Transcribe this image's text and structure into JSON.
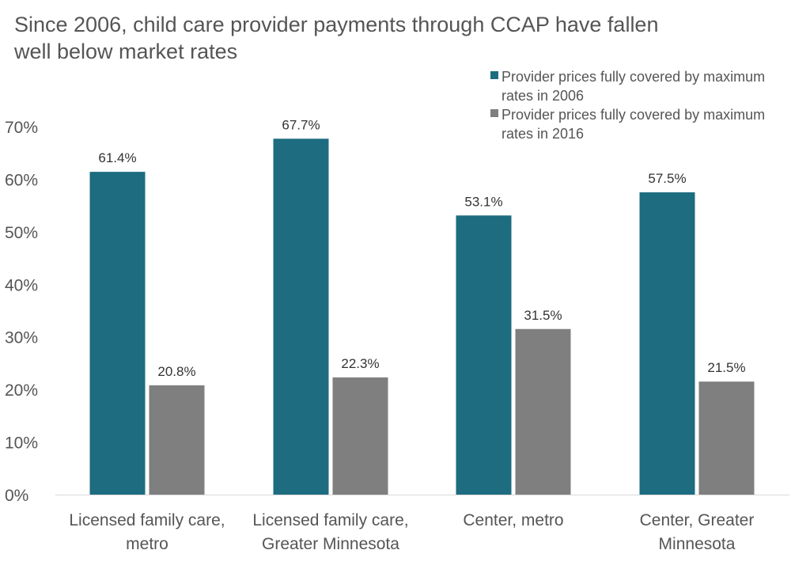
{
  "chart_data": {
    "type": "bar",
    "title": "Since 2006, child care provider payments through CCAP have fallen well below market rates",
    "categories": [
      [
        "Licensed family care,",
        "metro"
      ],
      [
        "Licensed family care,",
        "Greater Minnesota"
      ],
      [
        "Center, metro"
      ],
      [
        "Center, Greater",
        "Minnesota"
      ]
    ],
    "series": [
      {
        "name": "Provider prices fully covered by maximum rates in 2006",
        "legend_lines": [
          "Provider prices fully covered by maximum",
          "rates in 2006"
        ],
        "color": "#1d6c80",
        "values": [
          61.4,
          67.7,
          53.1,
          57.5
        ],
        "labels": [
          "61.4%",
          "67.7%",
          "53.1%",
          "57.5%"
        ]
      },
      {
        "name": "Provider prices fully covered by maximum rates in 2016",
        "legend_lines": [
          "Provider prices fully covered by maximum",
          "rates in 2016"
        ],
        "color": "#7f7f7f",
        "values": [
          20.8,
          22.3,
          31.5,
          21.5
        ],
        "labels": [
          "20.8%",
          "22.3%",
          "31.5%",
          "21.5%"
        ]
      }
    ],
    "y_ticks": [
      "0%",
      "10%",
      "20%",
      "30%",
      "40%",
      "50%",
      "60%",
      "70%"
    ],
    "ylim": [
      0,
      70
    ],
    "xlabel": "",
    "ylabel": "",
    "grid": false,
    "legend_position": "top-right"
  }
}
